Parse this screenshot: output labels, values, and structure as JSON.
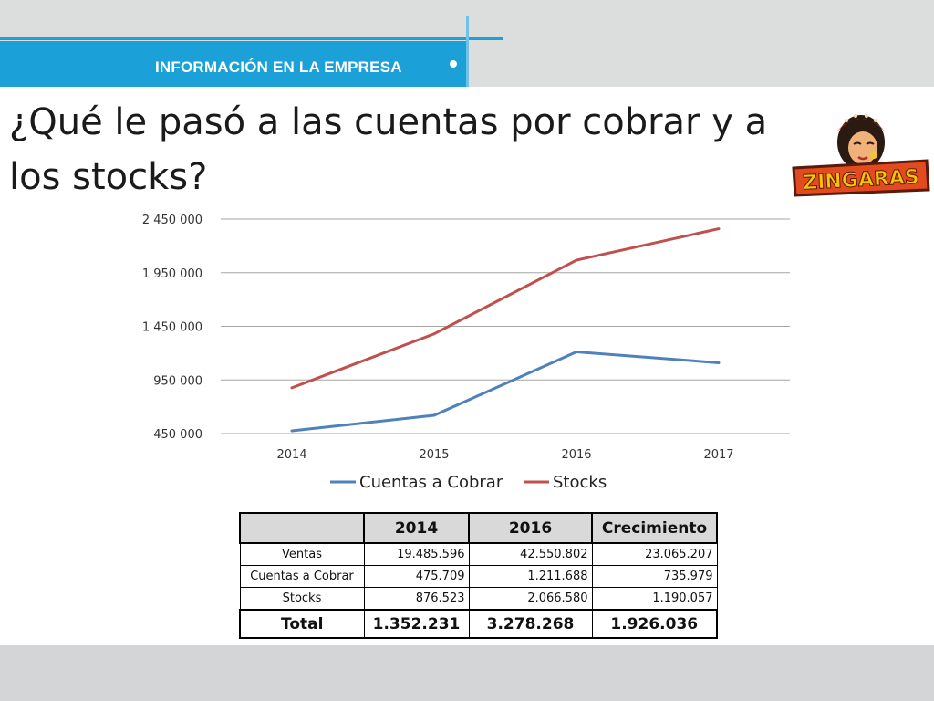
{
  "header": {
    "section_label": "INFORMACIÓN EN LA EMPRESA"
  },
  "title": "¿Qué le pasó a las cuentas por cobrar y a los stocks?",
  "logo": {
    "text": "ZINGARAS",
    "icon": "zingaras-logo-icon"
  },
  "colors": {
    "banner": "#1ba0d7",
    "cuentas": "#4f81bd",
    "stocks": "#c0504d"
  },
  "chart_data": {
    "type": "line",
    "categories": [
      "2014",
      "2015",
      "2016",
      "2017"
    ],
    "series": [
      {
        "name": "Cuentas a Cobrar",
        "values": [
          475709,
          620000,
          1211688,
          1110000
        ]
      },
      {
        "name": "Stocks",
        "values": [
          876523,
          1380000,
          2066580,
          2360000
        ]
      }
    ],
    "ylim": [
      450000,
      2450000
    ],
    "yticks": [
      450000,
      950000,
      1450000,
      1950000,
      2450000
    ],
    "ytick_labels": [
      "450 000",
      "950 000",
      "1 450 000",
      "1 950 000",
      "2 450 000"
    ],
    "grid": true,
    "legend": "bottom"
  },
  "table": {
    "headers": [
      "",
      "2014",
      "2016",
      "Crecimiento"
    ],
    "rows": [
      [
        "Ventas",
        "19.485.596",
        "42.550.802",
        "23.065.207"
      ],
      [
        "Cuentas a Cobrar",
        "475.709",
        "1.211.688",
        "735.979"
      ],
      [
        "Stocks",
        "876.523",
        "2.066.580",
        "1.190.057"
      ]
    ],
    "total": [
      "Total",
      "1.352.231",
      "3.278.268",
      "1.926.036"
    ]
  }
}
